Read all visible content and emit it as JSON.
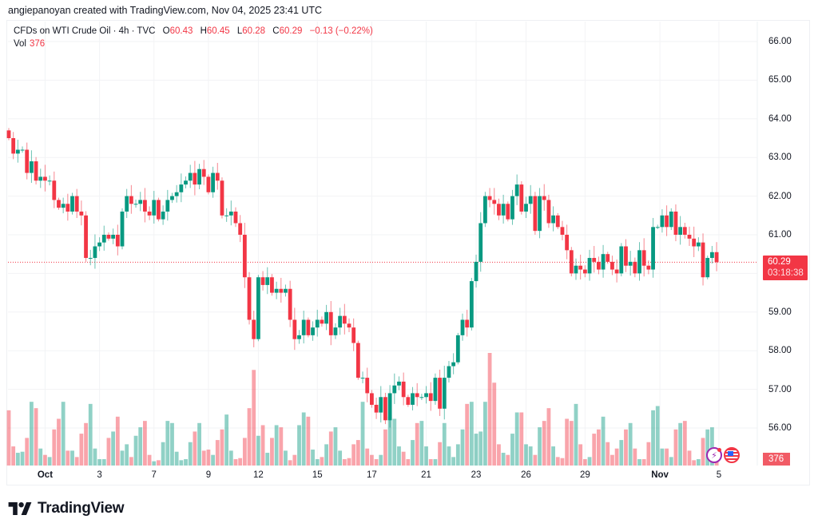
{
  "attribution": "angiepanoyan created with TradingView.com, Nov 04, 2025 23:41 UTC",
  "legend": {
    "symbol": "CFDs on WTI Crude Oil · 4h · TVC",
    "o_label": "O",
    "o": "60.43",
    "h_label": "H",
    "h": "60.45",
    "l_label": "L",
    "l": "60.28",
    "c_label": "C",
    "c": "60.29",
    "change": "−0.13 (−0.22%)",
    "vol_label": "Vol",
    "vol": "376"
  },
  "last_price": {
    "price": "60.29",
    "countdown": "03:18:38"
  },
  "volume_badge": "376",
  "logo_text": "TradingView",
  "colors": {
    "up": "#089981",
    "down": "#f23645",
    "up_vol": "rgba(8,153,129,0.45)",
    "down_vol": "rgba(242,54,69,0.45)",
    "grid": "#f2f3f5"
  },
  "chart_data": {
    "type": "candlestick",
    "title": "CFDs on WTI Crude Oil · 4h · TVC",
    "ylim": [
      55.3,
      66.0
    ],
    "y_ticks": [
      "56.00",
      "57.00",
      "58.00",
      "59.00",
      "60.00",
      "61.00",
      "62.00",
      "63.00",
      "64.00",
      "65.00",
      "66.00"
    ],
    "x_ticks": [
      {
        "label": "Oct",
        "index": 8,
        "bold": true
      },
      {
        "label": "3",
        "index": 20
      },
      {
        "label": "7",
        "index": 32
      },
      {
        "label": "9",
        "index": 44
      },
      {
        "label": "12",
        "index": 55
      },
      {
        "label": "15",
        "index": 68
      },
      {
        "label": "17",
        "index": 80
      },
      {
        "label": "21",
        "index": 92
      },
      {
        "label": "23",
        "index": 103
      },
      {
        "label": "26",
        "index": 114
      },
      {
        "label": "29",
        "index": 127
      },
      {
        "label": "Nov",
        "index": 143.5,
        "bold": true
      },
      {
        "label": "5",
        "index": 156.5
      }
    ],
    "first_open": 63.7,
    "close": [
      63.5,
      63.1,
      63.2,
      63.2,
      62.6,
      62.9,
      62.4,
      62.5,
      62.4,
      62.4,
      61.9,
      61.7,
      61.8,
      61.6,
      62.0,
      61.6,
      61.5,
      60.4,
      60.4,
      60.7,
      60.8,
      61.0,
      60.9,
      61.0,
      60.7,
      61.6,
      62.0,
      61.8,
      61.8,
      61.9,
      61.6,
      61.5,
      61.9,
      61.4,
      61.6,
      61.9,
      62.0,
      62.1,
      62.3,
      62.4,
      62.6,
      62.3,
      62.7,
      62.5,
      62.1,
      62.6,
      62.4,
      61.5,
      61.5,
      61.6,
      61.3,
      61.0,
      59.9,
      58.8,
      58.3,
      59.9,
      59.7,
      59.9,
      59.5,
      59.6,
      59.5,
      59.6,
      58.8,
      58.3,
      58.4,
      58.8,
      58.4,
      58.6,
      58.8,
      58.7,
      59.0,
      58.4,
      58.6,
      58.9,
      58.7,
      58.6,
      58.2,
      57.3,
      57.3,
      56.9,
      56.6,
      56.4,
      56.8,
      56.2,
      56.9,
      57.1,
      57.2,
      56.8,
      56.6,
      56.9,
      56.8,
      56.8,
      56.9,
      56.7,
      57.3,
      56.5,
      57.3,
      57.6,
      57.7,
      58.4,
      58.8,
      58.6,
      59.8,
      60.3,
      61.3,
      62.0,
      61.9,
      61.8,
      61.5,
      61.8,
      61.4,
      62.0,
      62.3,
      61.6,
      61.8,
      62.0,
      61.1,
      62.0,
      61.9,
      61.3,
      61.5,
      61.2,
      61.0,
      60.6,
      60.0,
      60.2,
      60.1,
      60.0,
      60.4,
      60.3,
      60.1,
      60.5,
      60.3,
      60.1,
      60.0,
      60.7,
      60.2,
      60.3,
      60.0,
      60.6,
      60.2,
      60.1,
      61.2,
      61.2,
      61.5,
      61.2,
      61.6,
      61.0,
      61.2,
      61.0,
      60.9,
      60.7,
      60.8,
      59.9,
      60.4,
      60.55,
      60.29
    ],
    "volume": [
      2600,
      900,
      600,
      650,
      1300,
      3000,
      2700,
      800,
      500,
      400,
      1700,
      2200,
      3000,
      700,
      700,
      400,
      1500,
      2000,
      2900,
      800,
      300,
      300,
      1300,
      1600,
      2300,
      700,
      1000,
      400,
      1400,
      1800,
      2100,
      500,
      200,
      250,
      1100,
      2100,
      2000,
      650,
      250,
      300,
      1100,
      1600,
      2000,
      700,
      750,
      500,
      1200,
      1700,
      2400,
      700,
      300,
      350,
      1300,
      2700,
      4500,
      1400,
      1900,
      600,
      1300,
      1900,
      1800,
      700,
      250,
      500,
      1900,
      2500,
      2300,
      750,
      300,
      400,
      1000,
      1600,
      1800,
      700,
      300,
      350,
      1000,
      1200,
      3000,
      800,
      500,
      300,
      500,
      1700,
      2300,
      2200,
      900,
      650,
      300,
      1200,
      2000,
      2100,
      900,
      300,
      300,
      1100,
      2000,
      900,
      400,
      1000,
      1700,
      2900,
      3000,
      1500,
      1600,
      3000,
      5300,
      3900,
      1000,
      600,
      500,
      1500,
      2500,
      2500,
      1000,
      900,
      500,
      1800,
      2100,
      2700,
      900,
      400,
      350,
      2200,
      2100,
      2900,
      1000,
      300,
      400,
      1500,
      1700,
      2300,
      1100,
      500,
      800,
      1200,
      1700,
      2000,
      800,
      300,
      300,
      1100,
      2600,
      2800,
      800,
      800,
      400,
      1700,
      2000,
      2100,
      700,
      250,
      300,
      1300,
      1700,
      1800,
      376
    ],
    "volume_max": 5300,
    "grid": true
  }
}
